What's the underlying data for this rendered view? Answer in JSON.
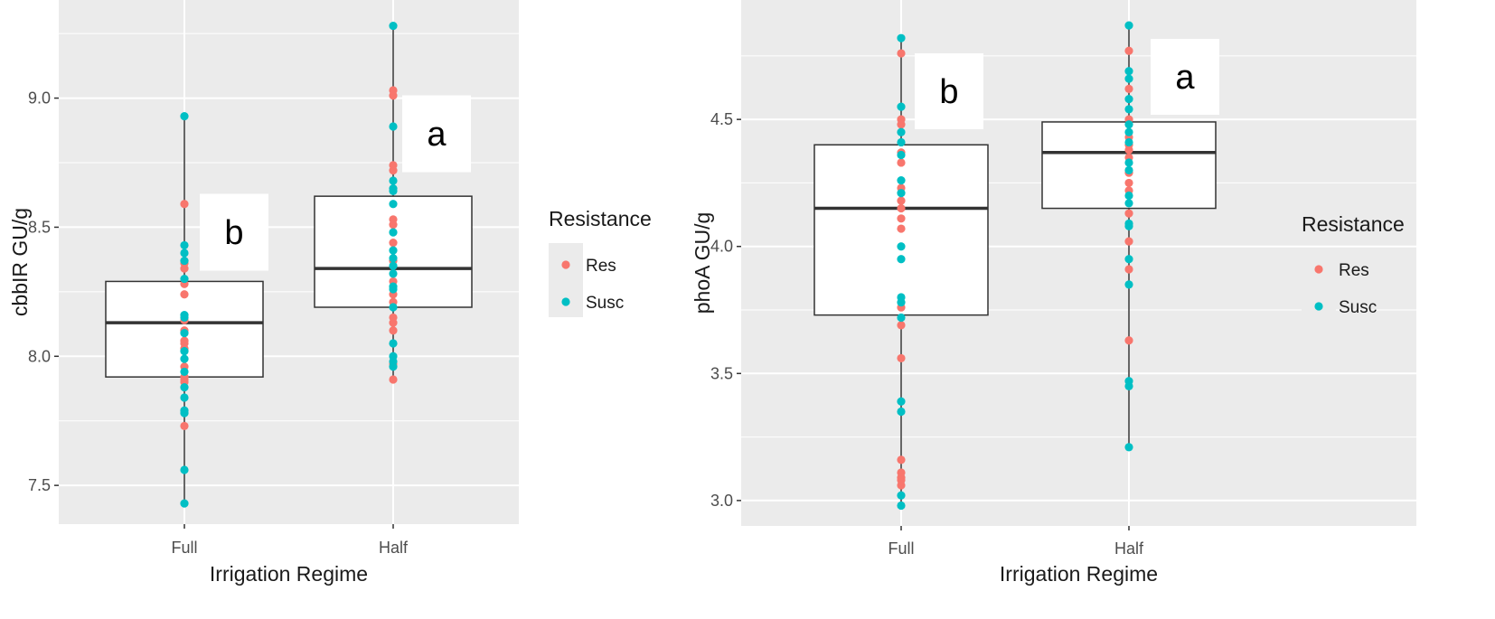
{
  "chart_data": [
    {
      "type": "box",
      "xlabel": "Irrigation Regime",
      "ylabel": "cbbIR GU/g",
      "categories": [
        "Full",
        "Half"
      ],
      "ylim": [
        7.35,
        9.38
      ],
      "yticks": [
        7.5,
        8.0,
        8.5,
        9.0
      ],
      "ytick_labels": [
        "7.5",
        "8.0",
        "8.5",
        "9.0"
      ],
      "grid": true,
      "legend": {
        "title": "Resistance",
        "entries": [
          "Res",
          "Susc"
        ],
        "position": "right"
      },
      "colors": {
        "Res": "#f8766d",
        "Susc": "#00bfc4",
        "panel": "#ebebeb",
        "grid": "#ffffff"
      },
      "boxes": [
        {
          "category": "Full",
          "q1": 7.92,
          "median": 8.13,
          "q3": 8.29,
          "whisker_low": 7.43,
          "whisker_high": 8.93
        },
        {
          "category": "Half",
          "q1": 8.19,
          "median": 8.34,
          "q3": 8.62,
          "whisker_low": 7.91,
          "whisker_high": 9.28
        }
      ],
      "annotations": [
        {
          "text": "b",
          "category": "Full",
          "y": 8.46
        },
        {
          "text": "a",
          "category": "Half",
          "y": 8.85
        }
      ],
      "points": [
        {
          "category": "Full",
          "group": "Res",
          "values": [
            8.59,
            8.36,
            8.34,
            8.28,
            8.24,
            8.14,
            8.1,
            8.06,
            8.05,
            8.03,
            7.96,
            7.92,
            7.91,
            7.9,
            7.73
          ]
        },
        {
          "category": "Full",
          "group": "Susc",
          "values": [
            8.93,
            8.43,
            8.4,
            8.37,
            8.3,
            8.16,
            8.15,
            8.09,
            8.02,
            7.99,
            7.94,
            7.88,
            7.84,
            7.79,
            7.78,
            7.56,
            7.43
          ]
        },
        {
          "category": "Half",
          "group": "Res",
          "values": [
            9.03,
            9.01,
            8.74,
            8.72,
            8.53,
            8.51,
            8.44,
            8.37,
            8.29,
            8.24,
            8.21,
            8.15,
            8.13,
            8.1,
            7.97,
            7.91
          ]
        },
        {
          "category": "Half",
          "group": "Susc",
          "values": [
            9.28,
            8.89,
            8.68,
            8.65,
            8.64,
            8.59,
            8.48,
            8.41,
            8.38,
            8.35,
            8.32,
            8.27,
            8.26,
            8.19,
            8.05,
            8.0,
            7.98,
            7.96
          ]
        }
      ]
    },
    {
      "type": "box",
      "xlabel": "Irrigation Regime",
      "ylabel": "phoA GU/g",
      "categories": [
        "Full",
        "Half"
      ],
      "ylim": [
        2.9,
        4.97
      ],
      "yticks": [
        3.0,
        3.5,
        4.0,
        4.5
      ],
      "ytick_labels": [
        "3.0",
        "3.5",
        "4.0",
        "4.5"
      ],
      "grid": true,
      "legend": {
        "title": "Resistance",
        "entries": [
          "Res",
          "Susc"
        ],
        "position": "right"
      },
      "colors": {
        "Res": "#f8766d",
        "Susc": "#00bfc4",
        "panel": "#ebebeb",
        "grid": "#ffffff"
      },
      "boxes": [
        {
          "category": "Full",
          "q1": 3.73,
          "median": 4.15,
          "q3": 4.4,
          "whisker_low": 2.98,
          "whisker_high": 4.82
        },
        {
          "category": "Half",
          "q1": 4.15,
          "median": 4.37,
          "q3": 4.49,
          "whisker_low": 3.21,
          "whisker_high": 4.87
        }
      ],
      "annotations": [
        {
          "text": "b",
          "category": "Full",
          "y": 4.64
        },
        {
          "text": "a",
          "category": "Half",
          "y": 4.69
        }
      ],
      "points": [
        {
          "category": "Full",
          "group": "Res",
          "values": [
            4.76,
            4.5,
            4.48,
            4.37,
            4.33,
            4.23,
            4.18,
            4.15,
            4.11,
            4.07,
            3.76,
            3.69,
            3.56,
            3.16,
            3.11,
            3.09,
            3.08,
            3.06
          ]
        },
        {
          "category": "Full",
          "group": "Susc",
          "values": [
            4.82,
            4.55,
            4.45,
            4.41,
            4.36,
            4.26,
            4.21,
            4.0,
            3.95,
            3.8,
            3.78,
            3.72,
            3.39,
            3.35,
            3.02,
            2.98
          ]
        },
        {
          "category": "Half",
          "group": "Res",
          "values": [
            4.77,
            4.62,
            4.5,
            4.43,
            4.4,
            4.38,
            4.35,
            4.29,
            4.25,
            4.22,
            4.13,
            4.02,
            3.91,
            3.63
          ]
        },
        {
          "category": "Half",
          "group": "Susc",
          "values": [
            4.87,
            4.69,
            4.66,
            4.58,
            4.54,
            4.48,
            4.45,
            4.41,
            4.33,
            4.3,
            4.2,
            4.17,
            4.09,
            4.08,
            3.95,
            3.85,
            3.47,
            3.45,
            3.21
          ]
        }
      ]
    }
  ]
}
